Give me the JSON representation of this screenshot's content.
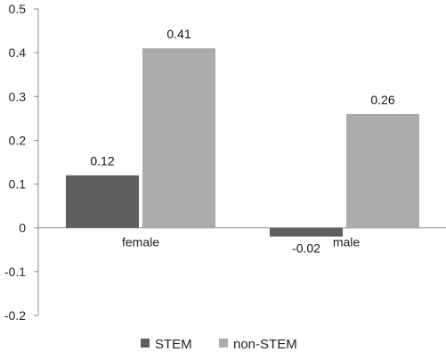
{
  "chart_data": {
    "type": "bar",
    "categories": [
      "female",
      "male"
    ],
    "series": [
      {
        "name": "STEM",
        "values": [
          0.12,
          -0.02
        ],
        "color": "#5f5f5f"
      },
      {
        "name": "non-STEM",
        "values": [
          0.41,
          0.26
        ],
        "color": "#ababab"
      }
    ],
    "data_labels": [
      [
        "0.12",
        "-0.02"
      ],
      [
        "0.41",
        "0.26"
      ]
    ],
    "ylim": [
      -0.2,
      0.5
    ],
    "yticks": [
      "-0.2",
      "-0.1",
      "0",
      "0.1",
      "0.2",
      "0.3",
      "0.4",
      "0.5"
    ],
    "grid": false,
    "legend_position": "bottom",
    "title": "",
    "xlabel": "",
    "ylabel": ""
  }
}
